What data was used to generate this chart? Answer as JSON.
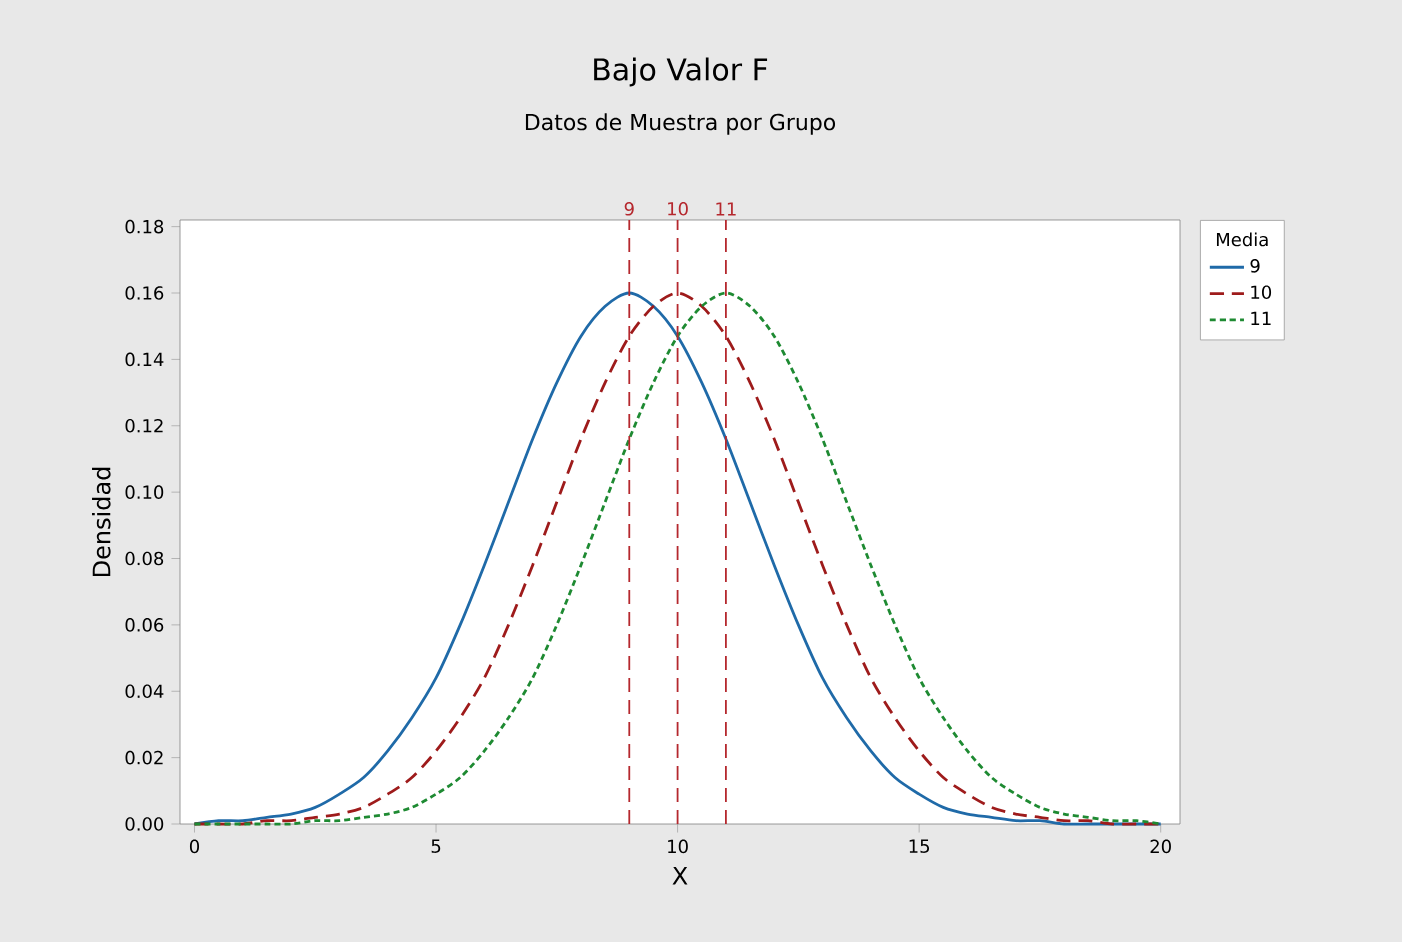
{
  "chart_data": {
    "type": "line",
    "title": "Bajo Valor F",
    "subtitle": "Datos de Muestra por Grupo",
    "xlabel": "X",
    "ylabel": "Densidad",
    "legend_title": "Media",
    "legend": "top right",
    "grid": false,
    "marker": "none",
    "x": [
      0,
      0.5,
      1,
      1.5,
      2,
      2.5,
      3,
      3.5,
      4,
      4.5,
      5,
      5.5,
      6,
      6.5,
      7,
      7.5,
      8,
      8.5,
      9,
      9.5,
      10,
      10.5,
      11,
      11.5,
      12,
      12.5,
      13,
      13.5,
      14,
      14.5,
      15,
      15.5,
      16,
      16.5,
      17,
      17.5,
      18,
      18.5,
      19,
      19.5,
      20
    ],
    "series": [
      {
        "name": "9",
        "color": "#1f6aa8",
        "line_style": "solid",
        "values": [
          0,
          0.001,
          0.001,
          0.002,
          0.003,
          0.005,
          0.009,
          0.014,
          0.022,
          0.032,
          0.044,
          0.06,
          0.078,
          0.097,
          0.116,
          0.133,
          0.147,
          0.156,
          0.16,
          0.156,
          0.147,
          0.133,
          0.116,
          0.097,
          0.078,
          0.06,
          0.044,
          0.032,
          0.022,
          0.014,
          0.009,
          0.005,
          0.003,
          0.002,
          0.001,
          0.001,
          0,
          0,
          0,
          0,
          0
        ]
      },
      {
        "name": "10",
        "color": "#9e1b1b",
        "line_style": "dashed",
        "values": [
          0,
          0,
          0,
          0.001,
          0.001,
          0.002,
          0.003,
          0.005,
          0.009,
          0.014,
          0.022,
          0.032,
          0.044,
          0.06,
          0.078,
          0.097,
          0.116,
          0.133,
          0.147,
          0.156,
          0.16,
          0.156,
          0.147,
          0.133,
          0.116,
          0.097,
          0.078,
          0.06,
          0.044,
          0.032,
          0.022,
          0.014,
          0.009,
          0.005,
          0.003,
          0.002,
          0.001,
          0.001,
          0,
          0,
          0
        ]
      },
      {
        "name": "11",
        "color": "#1e8a32",
        "line_style": "dotted",
        "values": [
          0,
          0,
          0,
          0,
          0,
          0.001,
          0.001,
          0.002,
          0.003,
          0.005,
          0.009,
          0.014,
          0.022,
          0.032,
          0.044,
          0.06,
          0.078,
          0.097,
          0.116,
          0.133,
          0.147,
          0.156,
          0.16,
          0.156,
          0.147,
          0.133,
          0.116,
          0.097,
          0.078,
          0.06,
          0.044,
          0.032,
          0.022,
          0.014,
          0.009,
          0.005,
          0.003,
          0.002,
          0.001,
          0.001,
          0
        ]
      }
    ],
    "ref_lines": [
      {
        "axis": "x",
        "value": 9,
        "label": "9",
        "color": "#b5282e",
        "line_style": "dashed"
      },
      {
        "axis": "x",
        "value": 10,
        "label": "10",
        "color": "#b5282e",
        "line_style": "dashed"
      },
      {
        "axis": "x",
        "value": 11,
        "label": "11",
        "color": "#b5282e",
        "line_style": "dashed"
      }
    ],
    "xlim": [
      -0.3,
      20.4
    ],
    "ylim": [
      0,
      0.182
    ],
    "xticks": [
      0,
      5,
      10,
      15,
      20
    ],
    "yticks": [
      {
        "value": 0,
        "label": "0.00"
      },
      {
        "value": 0.02,
        "label": "0.02"
      },
      {
        "value": 0.04,
        "label": "0.04"
      },
      {
        "value": 0.06,
        "label": "0.06"
      },
      {
        "value": 0.08,
        "label": "0.08"
      },
      {
        "value": 0.1,
        "label": "0.10"
      },
      {
        "value": 0.12,
        "label": "0.12"
      },
      {
        "value": 0.14,
        "label": "0.14"
      },
      {
        "value": 0.16,
        "label": "0.16"
      },
      {
        "value": 0.18,
        "label": "0.18"
      }
    ]
  }
}
